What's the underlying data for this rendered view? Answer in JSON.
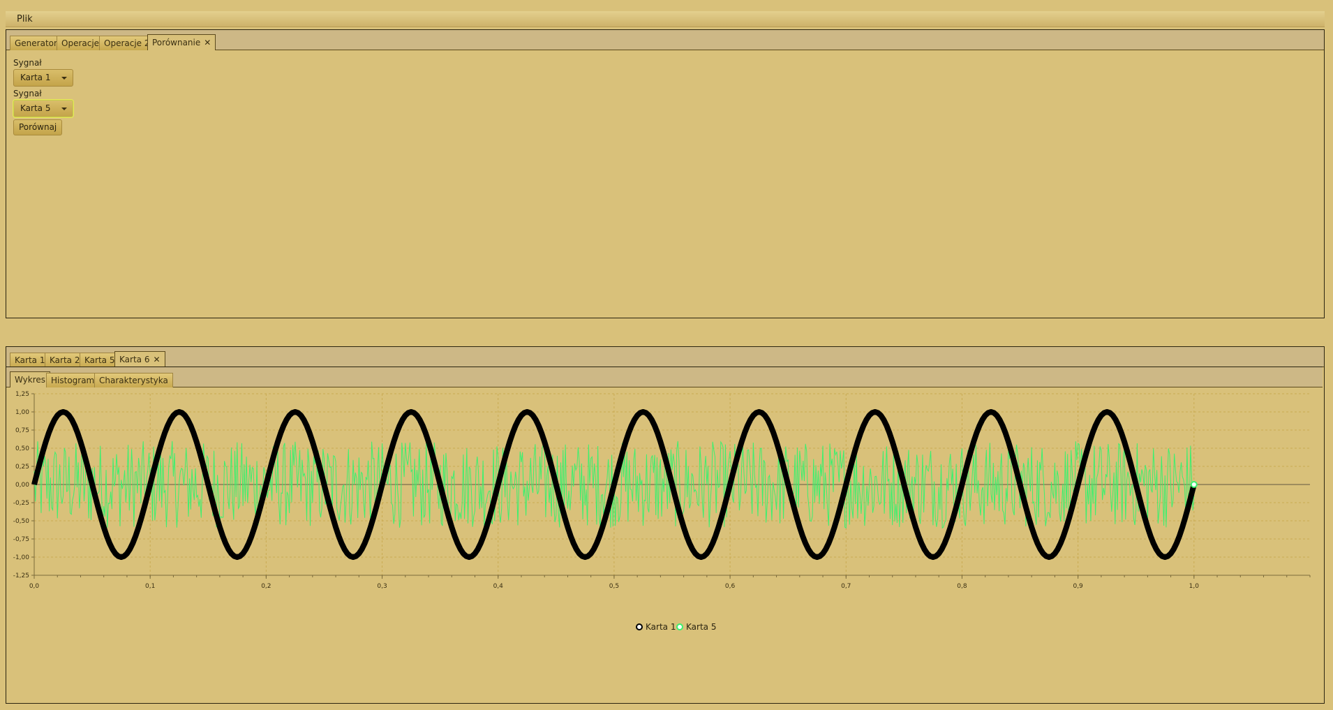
{
  "menu": {
    "file": "Plik"
  },
  "top_tabs": [
    {
      "label": "Generator"
    },
    {
      "label": "Operacje"
    },
    {
      "label": "Operacje 2"
    },
    {
      "label": "Porównanie"
    }
  ],
  "form": {
    "signal1_label": "Sygnał",
    "signal1_value": "Karta 1",
    "signal2_label": "Sygnał",
    "signal2_value": "Karta 5",
    "compare_button": "Porównaj"
  },
  "card_tabs": [
    {
      "label": "Karta 1"
    },
    {
      "label": "Karta 2"
    },
    {
      "label": "Karta 5"
    },
    {
      "label": "Karta 6"
    }
  ],
  "view_tabs": [
    {
      "label": "Wykres"
    },
    {
      "label": "Histogram"
    },
    {
      "label": "Charakterystyka"
    }
  ],
  "colors": {
    "series1": "#000000",
    "series2": "#3cf06e"
  },
  "chart_data": {
    "type": "line",
    "title": "",
    "xlabel": "",
    "ylabel": "",
    "xlim": [
      0.0,
      1.1
    ],
    "ylim": [
      -1.25,
      1.25
    ],
    "x_ticks": [
      "0,0",
      "0,1",
      "0,2",
      "0,3",
      "0,4",
      "0,5",
      "0,6",
      "0,7",
      "0,8",
      "0,9",
      "1,0"
    ],
    "y_ticks": [
      "1,25",
      "1,00",
      "0,75",
      "0,50",
      "0,25",
      "0,00",
      "-0,25",
      "-0,50",
      "-0,75",
      "-1,00",
      "-1,25"
    ],
    "grid": true,
    "legend": "bottom-center",
    "series": [
      {
        "name": "Karta 1",
        "kind": "sine",
        "amplitude": 1.0,
        "frequency": 10,
        "x_range": [
          0,
          1
        ],
        "samples": 400
      },
      {
        "name": "Karta 5",
        "kind": "uniform-noise",
        "amplitude": 0.6,
        "x_range": [
          0,
          1
        ],
        "samples": 1000
      }
    ]
  }
}
